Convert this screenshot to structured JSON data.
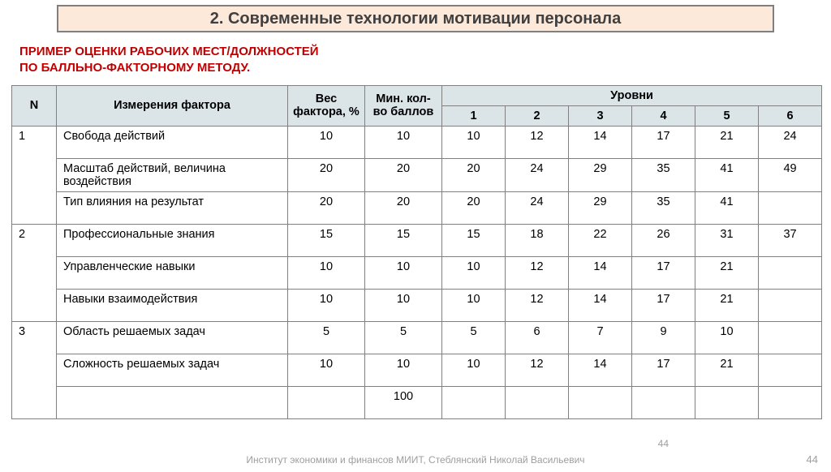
{
  "banner": "2. Современные технологии мотивации персонала",
  "subtitle_line1": "ПРИМЕР ОЦЕНКИ РАБОЧИХ МЕСТ/ДОЛЖНОСТЕЙ",
  "subtitle_line2": "ПО БАЛЛЬНО-ФАКТОРНОМУ МЕТОДУ.",
  "table": {
    "headers": {
      "n": "N",
      "dimension": "Измерения фактора",
      "weight": "Вес фактора, %",
      "min_points": "Мин. кол-во баллов",
      "levels_title": "Уровни",
      "levels": [
        "1",
        "2",
        "3",
        "4",
        "5",
        "6"
      ]
    },
    "header_bg": "#dbe5e8",
    "border_color": "#808080",
    "rows": [
      {
        "group": "1",
        "dim": "Свобода действий",
        "wt": "10",
        "min": "10",
        "lv": [
          "10",
          "12",
          "14",
          "17",
          "21",
          "24"
        ]
      },
      {
        "group": "",
        "dim": "Масштаб действий, величина воздействия",
        "wt": "20",
        "min": "20",
        "lv": [
          "20",
          "24",
          "29",
          "35",
          "41",
          "49"
        ]
      },
      {
        "group": "",
        "dim": "Тип влияния на результат",
        "wt": "20",
        "min": "20",
        "lv": [
          "20",
          "24",
          "29",
          "35",
          "41",
          ""
        ]
      },
      {
        "group": "2",
        "dim": "Профессиональные знания",
        "wt": "15",
        "min": "15",
        "lv": [
          "15",
          "18",
          "22",
          "26",
          "31",
          "37"
        ]
      },
      {
        "group": "",
        "dim": "Управленческие навыки",
        "wt": "10",
        "min": "10",
        "lv": [
          "10",
          "12",
          "14",
          "17",
          "21",
          ""
        ]
      },
      {
        "group": "",
        "dim": "Навыки взаимодействия",
        "wt": "10",
        "min": "10",
        "lv": [
          "10",
          "12",
          "14",
          "17",
          "21",
          ""
        ]
      },
      {
        "group": "3",
        "dim": "Область решаемых задач",
        "wt": "5",
        "min": "5",
        "lv": [
          "5",
          "6",
          "7",
          "9",
          "10",
          ""
        ]
      },
      {
        "group": "",
        "dim": "Сложность решаемых задач",
        "wt": "10",
        "min": "10",
        "lv": [
          "10",
          "12",
          "14",
          "17",
          "21",
          ""
        ]
      },
      {
        "group": "",
        "dim": "",
        "wt": "",
        "min": "100",
        "lv": [
          "",
          "",
          "",
          "",
          "",
          ""
        ]
      }
    ]
  },
  "footer": "Институт экономики и финансов МИИТ, Стеблянский Николай Васильевич",
  "page_mid": "44",
  "page_right": "44"
}
